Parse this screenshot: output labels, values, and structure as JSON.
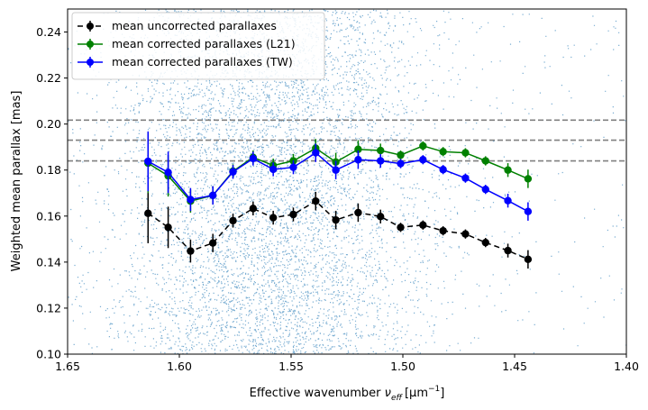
{
  "chart_data": {
    "type": "line",
    "xlabel": "Effective wavenumber",
    "xlabel_symbol": "ν",
    "xlabel_subscript": "eff",
    "xlabel_unit": "[μm",
    "xlabel_unit_exp": "−1",
    "xlabel_unit_close": "]",
    "ylabel": "Weighted mean parallax [mas]",
    "xlim": [
      1.65,
      1.4
    ],
    "ylim": [
      0.1,
      0.25
    ],
    "x_ticks": [
      1.65,
      1.6,
      1.55,
      1.5,
      1.45,
      1.4
    ],
    "x_tick_labels": [
      "1.65",
      "1.60",
      "1.55",
      "1.50",
      "1.45",
      "1.40"
    ],
    "y_ticks": [
      0.1,
      0.12,
      0.14,
      0.16,
      0.18,
      0.2,
      0.22,
      0.24
    ],
    "y_tick_labels": [
      "0.10",
      "0.12",
      "0.14",
      "0.16",
      "0.18",
      "0.20",
      "0.22",
      "0.24"
    ],
    "hlines": [
      0.2017,
      0.193,
      0.184
    ],
    "hline_color": "#808080",
    "scatter_color": "#1f77b4",
    "legend_location": "upper-left",
    "series": [
      {
        "name": "mean uncorrected parallaxes",
        "color": "#000000",
        "linestyle": "dashed",
        "x": [
          1.614,
          1.605,
          1.595,
          1.585,
          1.576,
          1.567,
          1.558,
          1.549,
          1.539,
          1.53,
          1.52,
          1.51,
          1.501,
          1.491,
          1.482,
          1.472,
          1.463,
          1.453,
          1.444
        ],
        "y": [
          0.1612,
          0.1551,
          0.1448,
          0.1483,
          0.158,
          0.1633,
          0.1593,
          0.1607,
          0.1665,
          0.1583,
          0.1615,
          0.1598,
          0.1551,
          0.1561,
          0.1536,
          0.1522,
          0.1485,
          0.145,
          0.1412
        ],
        "yerr": [
          0.013,
          0.009,
          0.005,
          0.004,
          0.003,
          0.003,
          0.003,
          0.003,
          0.004,
          0.004,
          0.004,
          0.003,
          0.002,
          0.002,
          0.002,
          0.002,
          0.002,
          0.003,
          0.004
        ]
      },
      {
        "name": "mean corrected parallaxes (L21)",
        "color": "#008000",
        "linestyle": "solid",
        "x": [
          1.614,
          1.605,
          1.595,
          1.585,
          1.576,
          1.567,
          1.558,
          1.549,
          1.539,
          1.53,
          1.52,
          1.51,
          1.501,
          1.491,
          1.482,
          1.472,
          1.463,
          1.453,
          1.444
        ],
        "y": [
          0.183,
          0.1775,
          0.1665,
          0.169,
          0.1795,
          0.1855,
          0.182,
          0.184,
          0.1895,
          0.1835,
          0.189,
          0.1885,
          0.1865,
          0.1905,
          0.188,
          0.1875,
          0.184,
          0.18,
          0.1762
        ],
        "yerr": [
          0.013,
          0.009,
          0.005,
          0.004,
          0.003,
          0.003,
          0.003,
          0.003,
          0.004,
          0.004,
          0.004,
          0.003,
          0.002,
          0.002,
          0.002,
          0.002,
          0.002,
          0.003,
          0.004
        ]
      },
      {
        "name": "mean corrected parallaxes (TW)",
        "color": "#0000ff",
        "linestyle": "solid",
        "x": [
          1.614,
          1.605,
          1.595,
          1.585,
          1.576,
          1.567,
          1.558,
          1.549,
          1.539,
          1.53,
          1.52,
          1.51,
          1.501,
          1.491,
          1.482,
          1.472,
          1.463,
          1.453,
          1.444
        ],
        "y": [
          0.1838,
          0.179,
          0.1672,
          0.169,
          0.1792,
          0.185,
          0.1803,
          0.1812,
          0.1875,
          0.18,
          0.1845,
          0.184,
          0.1828,
          0.1845,
          0.1802,
          0.1765,
          0.1716,
          0.1667,
          0.162
        ],
        "yerr": [
          0.013,
          0.009,
          0.005,
          0.004,
          0.003,
          0.003,
          0.003,
          0.003,
          0.004,
          0.004,
          0.004,
          0.003,
          0.002,
          0.002,
          0.002,
          0.002,
          0.002,
          0.003,
          0.004
        ]
      }
    ]
  }
}
